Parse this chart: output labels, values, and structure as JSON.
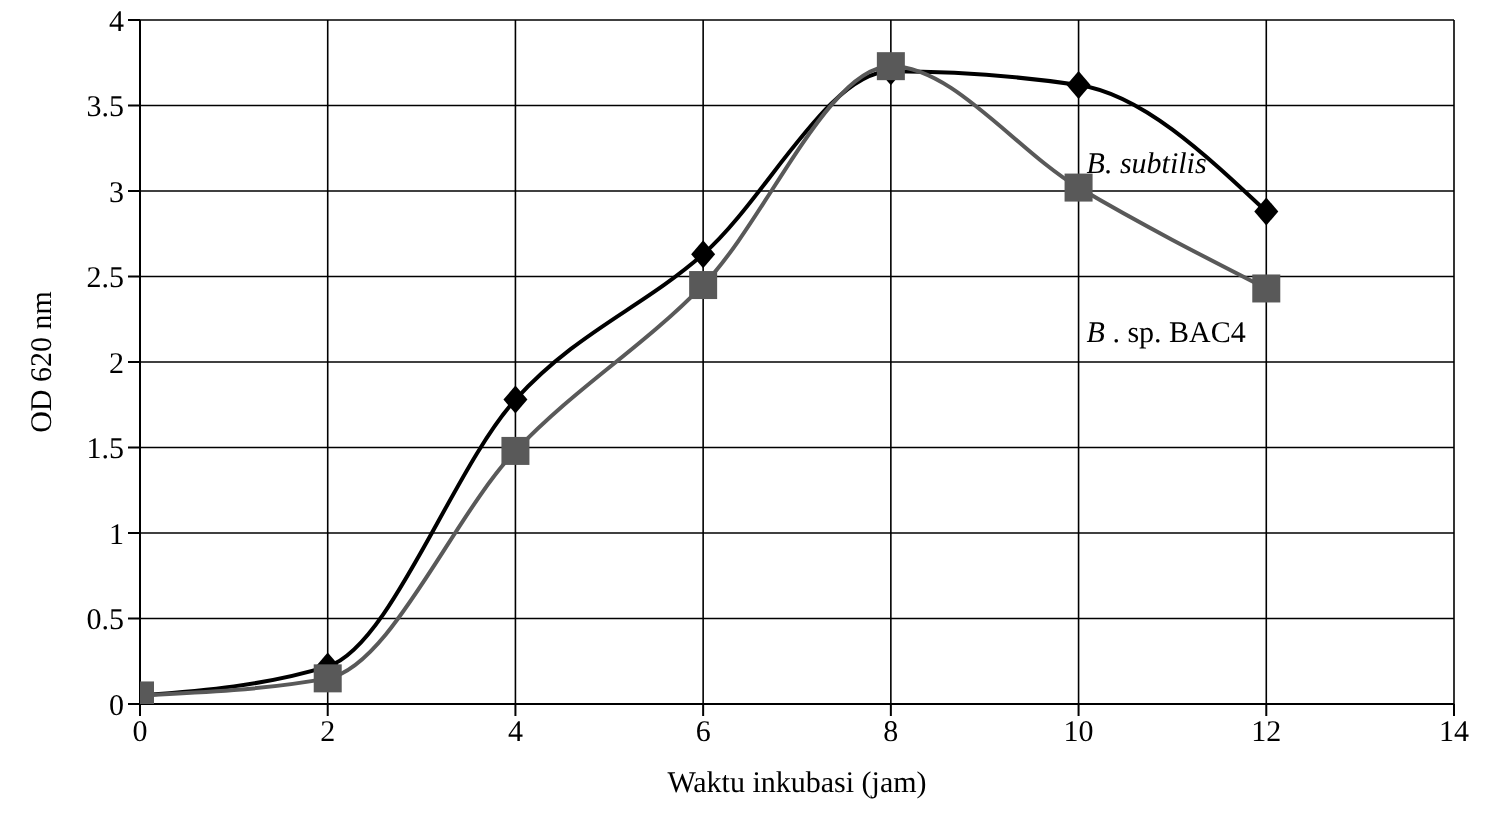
{
  "chart_data": {
    "type": "line",
    "xlabel": "Waktu inkubasi (jam)",
    "ylabel": "OD 620 nm",
    "x": [
      0,
      2,
      4,
      6,
      8,
      10,
      12
    ],
    "series": [
      {
        "name": "B. subtilis",
        "color": "#000000",
        "marker": "diamond",
        "values": [
          0.05,
          0.22,
          1.78,
          2.63,
          3.7,
          3.62,
          2.88
        ]
      },
      {
        "name": "B . sp. BAC4",
        "color": "#595959",
        "marker": "square",
        "values": [
          0.05,
          0.15,
          1.48,
          2.45,
          3.73,
          3.02,
          2.43
        ]
      }
    ],
    "xlim": [
      0,
      14
    ],
    "xticks": [
      0,
      2,
      4,
      6,
      8,
      10,
      12,
      14
    ],
    "ylim": [
      0,
      4
    ],
    "yticks": [
      0,
      0.5,
      1,
      1.5,
      2,
      2.5,
      3,
      3.5,
      4
    ],
    "grid": true,
    "line_style": "solid"
  }
}
